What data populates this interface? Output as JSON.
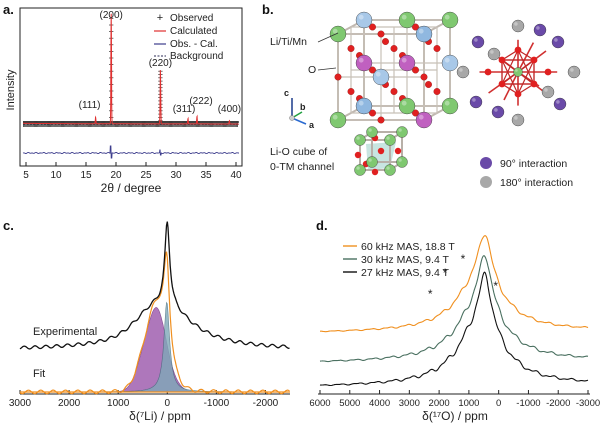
{
  "panels": {
    "a": {
      "letter": "a.",
      "legend": [
        "Observed",
        "Calculated",
        "Obs. - Cal.",
        "Background"
      ],
      "peaks": [
        {
          "label": "(200)",
          "x": 19.2
        },
        {
          "label": "(220)",
          "x": 27.4
        },
        {
          "label": "(111)",
          "x": 16.6
        },
        {
          "label": "(311)",
          "x": 32.0
        },
        {
          "label": "(222)",
          "x": 33.5
        },
        {
          "label": "(400)",
          "x": 38.9
        }
      ],
      "colors": {
        "observed": "#333333",
        "calculated": "#e03030",
        "difference": "#3c3c8c",
        "background": "#2a2a55"
      }
    },
    "b": {
      "letter": "b.",
      "labels": {
        "tm": "Li/Ti/Mn",
        "o": "O",
        "cube": "Li-O cube of",
        "channel": "0-TM channel"
      },
      "axes": {
        "c": "c",
        "b": "b",
        "a": "a"
      },
      "legend": [
        {
          "label": "90° interaction",
          "color": "#6a4aa8"
        },
        {
          "label": "180° interaction",
          "color": "#a8a8a8"
        }
      ]
    },
    "c": {
      "letter": "c.",
      "labels": {
        "experimental": "Experimental",
        "fit": "Fit"
      }
    },
    "d": {
      "letter": "d.",
      "legend": [
        {
          "label": "60 kHz MAS, 18.8 T",
          "color": "#f09020"
        },
        {
          "label": "30 kHz MAS, 9.4 T",
          "color": "#4a7060"
        },
        {
          "label": "27 kHz MAS, 9.4 T",
          "color": "#111111"
        }
      ],
      "star": "*"
    }
  },
  "chart_data": [
    {
      "type": "line",
      "panel": "a",
      "xlabel": "2θ / degree",
      "ylabel": "Intensity",
      "xlim": [
        4,
        41
      ],
      "xticks": [
        "5",
        "10",
        "15",
        "20",
        "25",
        "30",
        "35",
        "40"
      ],
      "series": [
        {
          "name": "Observed",
          "peaks": [
            [
              16.6,
              0.06
            ],
            [
              19.2,
              1.0
            ],
            [
              27.4,
              0.5
            ],
            [
              32.0,
              0.05
            ],
            [
              33.5,
              0.07
            ],
            [
              38.9,
              0.03
            ]
          ]
        },
        {
          "name": "Calculated",
          "peaks": [
            [
              16.6,
              0.06
            ],
            [
              19.2,
              1.0
            ],
            [
              27.4,
              0.5
            ],
            [
              32.0,
              0.05
            ],
            [
              33.5,
              0.07
            ],
            [
              38.9,
              0.03
            ]
          ]
        },
        {
          "name": "Obs. - Cal."
        },
        {
          "name": "Background"
        }
      ]
    },
    {
      "type": "line",
      "panel": "c",
      "xlabel": "δ(⁷Li) / ppm",
      "xlim": [
        3000,
        -2500
      ],
      "xticks": [
        "3000",
        "2000",
        "1000",
        "0",
        "-1000",
        "-2000"
      ],
      "series": [
        {
          "name": "Experimental",
          "peak": 0
        },
        {
          "name": "Fit",
          "components": [
            {
              "center": 250,
              "width": "broad"
            },
            {
              "center": 10,
              "width": "narrow"
            }
          ]
        }
      ]
    },
    {
      "type": "line",
      "panel": "d",
      "xlabel": "δ(¹⁷O) / ppm",
      "xlim": [
        6000,
        -3000
      ],
      "xticks": [
        "6000",
        "5000",
        "4000",
        "3000",
        "2000",
        "1000",
        "0",
        "-1000",
        "-2000",
        "-3000"
      ],
      "starred_ppm": [
        2300,
        1800,
        1200,
        100
      ],
      "series": [
        {
          "name": "60 kHz MAS, 18.8 T",
          "peak": 450
        },
        {
          "name": "30 kHz MAS, 9.4 T",
          "peak": 450
        },
        {
          "name": "27 kHz MAS, 9.4 T",
          "peak": 450
        }
      ]
    }
  ]
}
